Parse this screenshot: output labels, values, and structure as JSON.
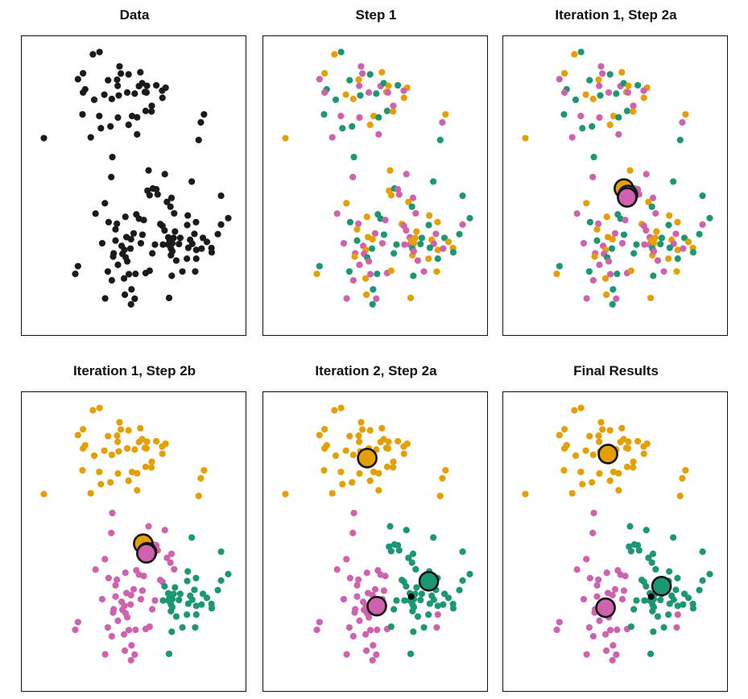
{
  "chart_data": {
    "type": "scatter",
    "grid": false,
    "palette": {
      "O": "#E69F00",
      "G": "#1B9873",
      "P": "#CF62AF",
      "K": "#1a1a1a"
    },
    "centroid_stroke": "#111111",
    "x": [
      26.7,
      29.2,
      36.7,
      23.0,
      37.2,
      40.1,
      44.5,
      21.1,
      32.4,
      35.8,
      36.0,
      44.0,
      45.2,
      47.0,
      50.5,
      54.0,
      52.7,
      23.8,
      23.0,
      31.0,
      33.8,
      36.4,
      39.6,
      42.4,
      46.2,
      46.8,
      52.8,
      27.2,
      48.8,
      46.5,
      48.7,
      22.8,
      29.1,
      36.1,
      41.4,
      43.3,
      68.4,
      67.2,
      29.7,
      33.3,
      40.1,
      43.3,
      8.3,
      25.9,
      66.4,
      34.0,
      47.6,
      53.7,
      33.6,
      63.8,
      47.2,
      49.2,
      50.5,
      48.0,
      51.0,
      74.8,
      56.2,
      54.5,
      55.8,
      31.2,
      27.7,
      57.2,
      43.0,
      38.9,
      44.0,
      45.8,
      62.3,
      77.5,
      32.6,
      35.7,
      52.0,
      52.8,
      62.1,
      65.4,
      74.8,
      35.2,
      53.6,
      73.6,
      42.0,
      45.3,
      39.3,
      41.0,
      30.2,
      35.2,
      44.7,
      50.0,
      57.5,
      55.0,
      57.0,
      59.5,
      53.0,
      55.0,
      56.5,
      59.0,
      63.2,
      64.8,
      68.0,
      69.5,
      64.0,
      62.5,
      65.5,
      67.5,
      71.2,
      71.3,
      37.5,
      40.8,
      38.5,
      37.8,
      34.5,
      34.3,
      39.0,
      39.6,
      49.0,
      56.0,
      58.0,
      62.0,
      65.5,
      36.1,
      21.1,
      20.1,
      32.3,
      33.8,
      38.4,
      40.2,
      42.7,
      46.5,
      48.0,
      56.3,
      60.3,
      65.1,
      41.2,
      38.7,
      42.4,
      41.0,
      31.3,
      55.3,
      56.0,
      56.5,
      55.5
    ],
    "y": [
      105.2,
      106.1,
      100.7,
      98.1,
      98.0,
      97.7,
      98.5,
      95.9,
      95.5,
      95.7,
      93.4,
      93.3,
      94.4,
      93.4,
      93.6,
      92.7,
      91.6,
      92.1,
      90.9,
      90.1,
      88.5,
      89.8,
      90.9,
      90.5,
      91.1,
      90.9,
      88.9,
      88.2,
      85.9,
      84.0,
      83.8,
      82.7,
      82.1,
      81.5,
      82.1,
      81.6,
      82.7,
      79.7,
      77.5,
      78.2,
      78.8,
      75.2,
      73.8,
      74.1,
      73.1,
      66.7,
      61.7,
      60.3,
      59.2,
      57.5,
      54.1,
      54.9,
      54.6,
      52.4,
      52.7,
      52.2,
      51.4,
      49.9,
      48.1,
      49.4,
      45.5,
      45.6,
      45.2,
      44.3,
      43.6,
      43.1,
      44.8,
      43.8,
      42.3,
      41.7,
      41.6,
      40.9,
      41.2,
      42.3,
      41.4,
      39.6,
      39.2,
      37.8,
      38.1,
      37.6,
      36.7,
      35.9,
      34.4,
      35.4,
      34.4,
      33.9,
      38.8,
      36.6,
      36.4,
      36.4,
      33.9,
      33.9,
      34.4,
      34.1,
      35.7,
      37.9,
      36.4,
      34.9,
      34.2,
      32.7,
      31.9,
      32.4,
      32.6,
      31.0,
      33.4,
      32.4,
      31.9,
      30.4,
      30.6,
      29.4,
      29.1,
      27.6,
      30.6,
      29.9,
      27.9,
      28.6,
      28.6,
      26.3,
      25.8,
      22.9,
      23.8,
      20.5,
      21.2,
      22.8,
      22.9,
      23.2,
      24.1,
      22.2,
      23.8,
      23.8,
      17.1,
      15.1,
      13.6,
      11.5,
      13.7,
      13.9,
      32.4,
      31.4,
      35.4
    ],
    "xlim": [
      0,
      84
    ],
    "ylim": [
      0,
      112
    ],
    "panels": [
      {
        "title": "Data",
        "labels": "",
        "centroids": []
      },
      {
        "title": "Step 1",
        "labels": "OGPOPGOPGOPPGOGOPGPOOGPGOPOGPGOGPPOGOPGGOPOPGGOPPGOGPOPGPOGOPPGOGPOGGPOPGOPOPGPGOOPGPGOPOGPPOGOPGOPGOPOGPGOPPOGPGOPOGPGOGPOPGPOGPOGOPGPOGPO",
        "centroids": []
      },
      {
        "title": "Iteration 1, Step 2a",
        "labels": "OGPOPGOPGOPPGOGOPGPOOGPGOPOGPGOGPPOGOPGGOPOPGGOPPGOGPOPGPOGOPPGOGPOGGPOPGOPOPGPGOOPGPGOPOGPPOGOPGOPGOPOGPGOPPOGPGOPOGPGOGPOPGPOGPOGOPGPOGPO",
        "centroids": [
          {
            "c": "O",
            "x": 45.3,
            "y": 54.9
          },
          {
            "c": "G",
            "x": 46.8,
            "y": 52.5
          },
          {
            "c": "P",
            "x": 46.5,
            "y": 51.6
          }
        ]
      },
      {
        "title": "Iteration 1, Step 2b",
        "labels": "OOOOOOOOOOOOOOOOOOOOOOOOOOOOOOOOOOOOOOOOOOOOOPPPPGPPPPPGPPPPPPPPPPGGPPPPGGGPGGPPPPPPPPGGGGGGGGGGGGGGGGGGPPPPPPPPPGGGGPPPPPPPPPPGGGPPPPPGGGG",
        "centroids": [
          {
            "c": "O",
            "x": 45.6,
            "y": 55.2
          },
          {
            "c": "G",
            "x": 47.0,
            "y": 52.0
          },
          {
            "c": "P",
            "x": 46.8,
            "y": 51.6
          }
        ]
      },
      {
        "title": "Iteration 2, Step 2a",
        "labels": "OOOOOOOOOOOOOOOOOOOOOOOOOOOOOOOOOOOOOOOOOOOOOPGGPGGGGGGGGGGPPGPPPPGGPPGGGGGPGGPPPPPPPGGGGGGGGGGGGGGGGGGGPPPPPPPPGGGGPPPPPPPPPPGGGPPPPPPGGG",
        "centroids": [
          {
            "c": "O",
            "x": 39.0,
            "y": 87.3
          },
          {
            "c": "G",
            "x": 62.1,
            "y": 41.1
          },
          {
            "c": "P",
            "x": 42.6,
            "y": 31.8
          }
        ]
      },
      {
        "title": "Final Results",
        "labels": "OOOOOOOOOOOOOOOOOOOOOOOOOOOOOOOOOOOOOOOOOOOOOPGGPGGGGGGGGGGPPGPPPPGGPPGGGGGPGGPPPPPPPGGGGGGGGGGGGGGGGGGGPPPPPPPPGGGGPPPPPPPPPPGGGPPPPPPGGG",
        "centroids": [
          {
            "c": "O",
            "x": 39.3,
            "y": 88.8
          },
          {
            "c": "G",
            "x": 59.4,
            "y": 39.3
          },
          {
            "c": "P",
            "x": 38.4,
            "y": 31.2
          }
        ]
      }
    ]
  }
}
